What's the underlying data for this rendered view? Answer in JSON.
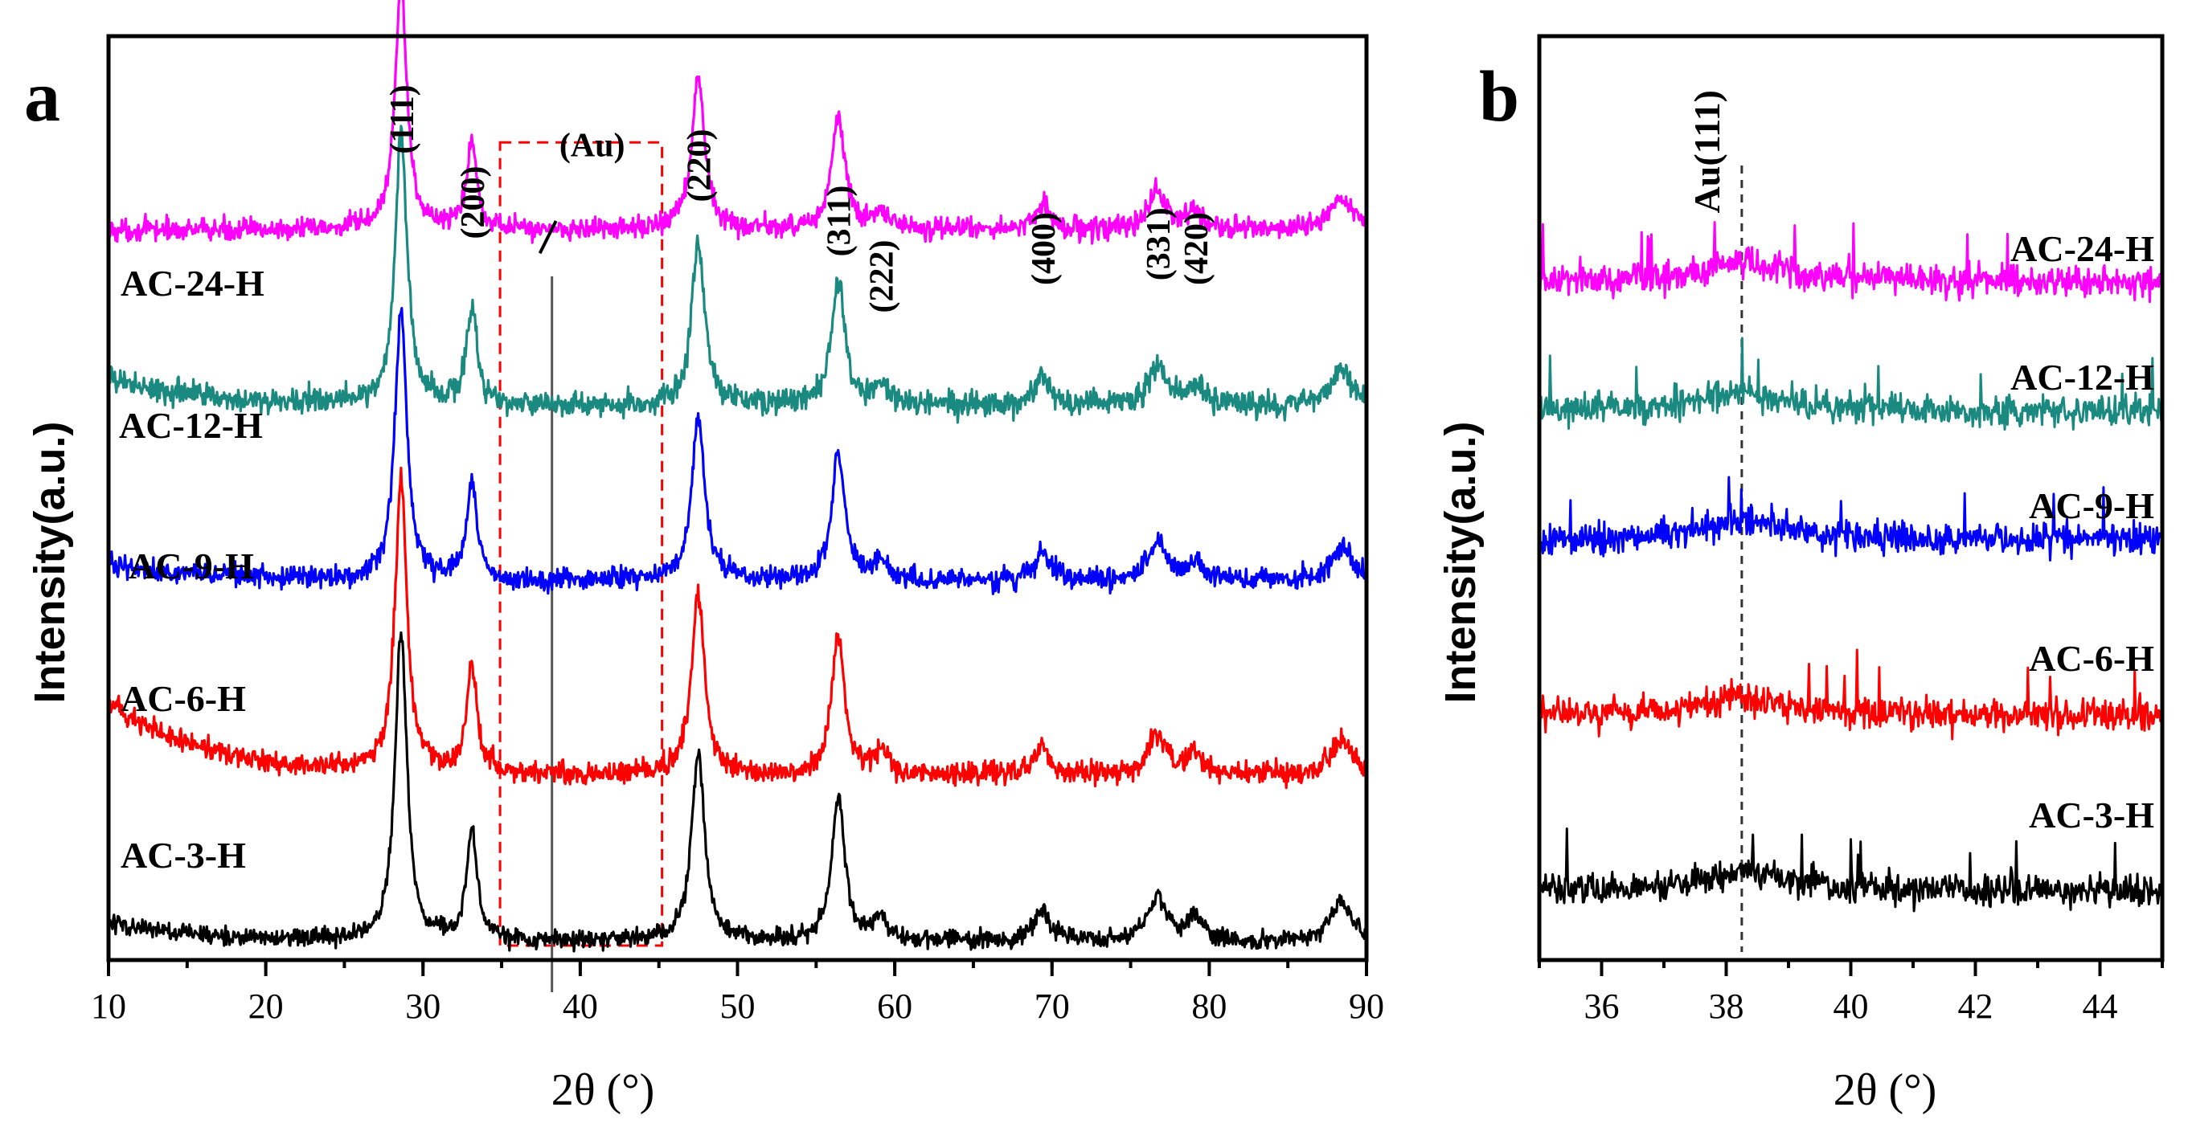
{
  "chart_data": [
    {
      "panel": "a",
      "type": "line",
      "xlabel": "2θ (°)",
      "ylabel": "Intensity(a.u.)",
      "xlim": [
        10,
        90
      ],
      "xticks": [
        "10",
        "20",
        "30",
        "40",
        "50",
        "60",
        "70",
        "80",
        "90"
      ],
      "xtick_values": [
        10,
        20,
        30,
        40,
        50,
        60,
        70,
        80,
        90
      ],
      "ylim": [
        0,
        1
      ],
      "series": [
        {
          "name": "AC-24-H",
          "color": "#ff00ff",
          "offset": 0.79,
          "scale": 0.95,
          "noise": 0.012,
          "bg": [
            0.0,
            0.0
          ]
        },
        {
          "name": "AC-12-H",
          "color": "#1a8a80",
          "offset": 0.6,
          "scale": 1.05,
          "noise": 0.014,
          "bg": [
            0.03,
            0.0
          ]
        },
        {
          "name": "AC-9-H",
          "color": "#0000ff",
          "offset": 0.41,
          "scale": 1.05,
          "noise": 0.012,
          "bg": [
            0.02,
            0.0
          ]
        },
        {
          "name": "AC-6-H",
          "color": "#ff0000",
          "offset": 0.2,
          "scale": 1.15,
          "noise": 0.013,
          "bg": [
            0.08,
            0.0
          ]
        },
        {
          "name": "AC-3-H",
          "color": "#000000",
          "offset": 0.02,
          "scale": 1.2,
          "noise": 0.01,
          "bg": [
            0.02,
            0.0
          ]
        }
      ],
      "peaks": [
        {
          "x": 28.6,
          "height": 0.28,
          "width": 0.45
        },
        {
          "x": 33.1,
          "height": 0.1,
          "width": 0.4
        },
        {
          "x": 47.5,
          "height": 0.17,
          "width": 0.5
        },
        {
          "x": 56.4,
          "height": 0.13,
          "width": 0.5
        },
        {
          "x": 59.1,
          "height": 0.02,
          "width": 0.5
        },
        {
          "x": 69.4,
          "height": 0.028,
          "width": 0.6
        },
        {
          "x": 76.7,
          "height": 0.04,
          "width": 0.7
        },
        {
          "x": 79.1,
          "height": 0.02,
          "width": 0.6
        },
        {
          "x": 88.4,
          "height": 0.035,
          "width": 0.8
        }
      ],
      "peak_labels": [
        {
          "text": "(111)",
          "x": 28.6
        },
        {
          "text": "(200)",
          "x": 33.1
        },
        {
          "text": "(220)",
          "x": 47.5
        },
        {
          "text": "(311)",
          "x": 56.4
        },
        {
          "text": "(222)",
          "x": 59.1
        },
        {
          "text": "(400)",
          "x": 69.4
        },
        {
          "text": "(331)",
          "x": 76.7
        },
        {
          "text": "(420)",
          "x": 79.1
        }
      ],
      "annotation": {
        "text": "(Au)",
        "x": 38.2
      },
      "highlight_box": {
        "x_range": [
          34.9,
          45.2
        ]
      }
    },
    {
      "panel": "b",
      "type": "line",
      "xlabel": "2θ (°)",
      "ylabel": "Intensity(a.u.)",
      "xlim": [
        35,
        45
      ],
      "xticks": [
        "36",
        "38",
        "40",
        "42",
        "44"
      ],
      "xtick_values": [
        36,
        38,
        40,
        42,
        44
      ],
      "ylim": [
        0,
        1
      ],
      "series": [
        {
          "name": "AC-24-H",
          "color": "#ff00ff",
          "offset": 0.735
        },
        {
          "name": "AC-12-H",
          "color": "#1a8a80",
          "offset": 0.595
        },
        {
          "name": "AC-9-H",
          "color": "#0000ff",
          "offset": 0.455
        },
        {
          "name": "AC-6-H",
          "color": "#ff0000",
          "offset": 0.265
        },
        {
          "name": "AC-3-H",
          "color": "#000000",
          "offset": 0.075
        }
      ],
      "reference_line": {
        "label": "Au(111)",
        "x": 38.25
      },
      "noise_amplitude": 0.035,
      "hump": {
        "x": 38.3,
        "height": 0.02,
        "width": 0.8
      }
    }
  ],
  "panel_letters": {
    "a": "a",
    "b": "b"
  }
}
